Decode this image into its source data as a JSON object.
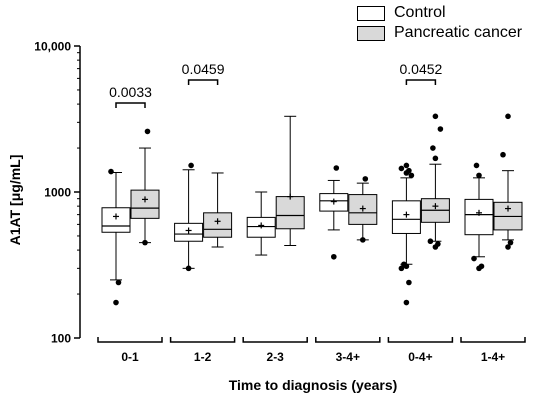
{
  "chart_data": {
    "type": "box",
    "ylabel": "A1AT [μg/mL]",
    "xlabel": "Time to diagnosis (years)",
    "yscale": "log",
    "ylim": [
      100,
      10000
    ],
    "yticks": [
      {
        "value": 100,
        "label": "100"
      },
      {
        "value": 1000,
        "label": "1000"
      },
      {
        "value": 10000,
        "label": "10,000"
      }
    ],
    "legend": {
      "position": "top-right",
      "entries": [
        {
          "name": "Control",
          "fill": "#ffffff"
        },
        {
          "name": "Pancreatic cancer",
          "fill": "#d9d9d9"
        }
      ]
    },
    "categories": [
      "0-1",
      "1-2",
      "2-3",
      "3-4+",
      "0-4+",
      "1-4+"
    ],
    "series": [
      {
        "name": "Control",
        "fill": "#ffffff",
        "boxes": [
          {
            "whisker_low": 250,
            "q1": 530,
            "median": 585,
            "q3": 780,
            "whisker_high": 1360,
            "mean": 680,
            "outliers": [
              175,
              240,
              1380
            ]
          },
          {
            "whisker_low": 300,
            "q1": 460,
            "median": 515,
            "q3": 610,
            "whisker_high": 1420,
            "mean": 545,
            "outliers": [
              300,
              1520
            ]
          },
          {
            "whisker_low": 370,
            "q1": 490,
            "median": 580,
            "q3": 670,
            "whisker_high": 1000,
            "mean": 590,
            "outliers": []
          },
          {
            "whisker_low": 550,
            "q1": 740,
            "median": 870,
            "q3": 975,
            "whisker_high": 1200,
            "mean": 860,
            "outliers": [
              360,
              1460
            ]
          },
          {
            "whisker_low": 320,
            "q1": 520,
            "median": 650,
            "q3": 870,
            "whisker_high": 1250,
            "mean": 700,
            "outliers": [
              175,
              240,
              300,
              310,
              320,
              1300,
              1350,
              1400,
              1450,
              1520
            ]
          },
          {
            "whisker_low": 360,
            "q1": 510,
            "median": 700,
            "q3": 890,
            "whisker_high": 1250,
            "mean": 720,
            "outliers": [
              300,
              310,
              350,
              1300,
              1520
            ]
          }
        ]
      },
      {
        "name": "Pancreatic cancer",
        "fill": "#d9d9d9",
        "boxes": [
          {
            "whisker_low": 450,
            "q1": 660,
            "median": 775,
            "q3": 1030,
            "whisker_high": 2000,
            "mean": 890,
            "outliers": [
              450,
              2600
            ]
          },
          {
            "whisker_low": 420,
            "q1": 490,
            "median": 555,
            "q3": 720,
            "whisker_high": 1350,
            "mean": 630,
            "outliers": []
          },
          {
            "whisker_low": 430,
            "q1": 560,
            "median": 690,
            "q3": 930,
            "whisker_high": 3300,
            "mean": 930,
            "outliers": []
          },
          {
            "whisker_low": 470,
            "q1": 600,
            "median": 720,
            "q3": 960,
            "whisker_high": 1150,
            "mean": 770,
            "outliers": [
              470,
              1230
            ]
          },
          {
            "whisker_low": 460,
            "q1": 620,
            "median": 750,
            "q3": 900,
            "whisker_high": 1550,
            "mean": 800,
            "outliers": [
              420,
              440,
              460,
              1700,
              2000,
              2700,
              3300
            ]
          },
          {
            "whisker_low": 470,
            "q1": 550,
            "median": 680,
            "q3": 850,
            "whisker_high": 1400,
            "mean": 770,
            "outliers": [
              420,
              450,
              1800,
              3300
            ]
          }
        ]
      }
    ],
    "annotations": [
      {
        "category": "0-1",
        "text": "0.0033"
      },
      {
        "category": "1-2",
        "text": "0.0459"
      },
      {
        "category": "0-4+",
        "text": "0.0452"
      }
    ]
  }
}
